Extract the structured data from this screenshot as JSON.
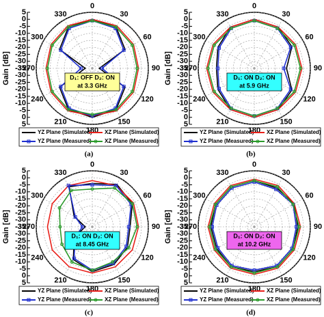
{
  "chart_data": [
    {
      "type": "polar",
      "caption": "(a)",
      "ylabel": "Gain [dB]",
      "rlim": [
        -35,
        5
      ],
      "rticks": [
        5,
        0,
        -5,
        -10,
        -15,
        -20,
        -25,
        -30,
        -35
      ],
      "thetaticks": [
        0,
        30,
        60,
        90,
        120,
        150,
        180,
        210,
        240,
        270,
        300,
        330
      ],
      "annotation": [
        "D₁: OFF D₂: ON",
        "at 3.3 GHz"
      ],
      "annotation_color": "#ffff99",
      "series": [
        {
          "name": "YZ Plane (Simulated)",
          "color": "#000000",
          "marker": "none",
          "values": [
            0,
            -1,
            -8,
            -30,
            -8,
            -1,
            0,
            -1,
            -8,
            -30,
            -8,
            -1
          ]
        },
        {
          "name": "XZ Plane (Simulated)",
          "color": "#e8201a",
          "marker": "none",
          "values": [
            0,
            0,
            -1,
            -2,
            -1,
            0,
            -1,
            0,
            -1,
            -2,
            -1,
            0
          ]
        },
        {
          "name": "YZ Plane (Measured)",
          "color": "#1f2fcf",
          "marker": "square",
          "values": [
            -1,
            -2,
            -9,
            -28,
            -9,
            -2,
            -1,
            -2,
            -9,
            -27,
            -9,
            -2
          ]
        },
        {
          "name": "XZ Plane (Measured)",
          "color": "#2a9a2a",
          "marker": "circle",
          "values": [
            -1,
            -1,
            -2,
            -3,
            -2,
            -1,
            -2,
            -1,
            -2,
            -3,
            -2,
            -1
          ]
        }
      ]
    },
    {
      "type": "polar",
      "caption": "(b)",
      "ylabel": "Gain [dB]",
      "rlim": [
        -35,
        5
      ],
      "rticks": [
        5,
        0,
        -5,
        -10,
        -15,
        -20,
        -25,
        -30,
        -35
      ],
      "thetaticks": [
        0,
        30,
        60,
        90,
        120,
        150,
        180,
        210,
        240,
        270,
        300,
        330
      ],
      "annotation": [
        "D₁: ON D₂: ON",
        "at 5.9 GHz"
      ],
      "annotation_color": "#33ffff",
      "series": [
        {
          "name": "YZ Plane (Simulated)",
          "color": "#000000",
          "marker": "none",
          "values": [
            0,
            -1,
            -4,
            -12,
            -4,
            -1,
            0,
            -1,
            -5,
            -8,
            -5,
            -1
          ]
        },
        {
          "name": "XZ Plane (Simulated)",
          "color": "#e8201a",
          "marker": "none",
          "values": [
            0,
            -1,
            -1,
            -1,
            -1,
            -1,
            0,
            -1,
            -1,
            -1,
            -1,
            -1
          ]
        },
        {
          "name": "YZ Plane (Measured)",
          "color": "#1f2fcf",
          "marker": "square",
          "values": [
            -1,
            -2,
            -5,
            -14,
            -5,
            -2,
            -1,
            -2,
            -6,
            -9,
            -6,
            -2
          ]
        },
        {
          "name": "XZ Plane (Measured)",
          "color": "#2a9a2a",
          "marker": "circle",
          "values": [
            -1,
            -2,
            -2,
            -2,
            -2,
            -2,
            -1,
            -2,
            -2,
            -2,
            -2,
            -2
          ]
        }
      ]
    },
    {
      "type": "polar",
      "caption": "(c)",
      "ylabel": "Gain [dB]",
      "rlim": [
        -35,
        5
      ],
      "rticks": [
        5,
        0,
        -5,
        -10,
        -15,
        -20,
        -25,
        -30,
        -35
      ],
      "thetaticks": [
        0,
        30,
        60,
        90,
        120,
        150,
        180,
        210,
        240,
        270,
        300,
        330
      ],
      "annotation": [
        "D₁: ON D₂: ON",
        "at 8.45 GHz"
      ],
      "annotation_color": "#33ffff",
      "series": [
        {
          "name": "YZ Plane (Simulated)",
          "color": "#000000",
          "marker": "none",
          "values": [
            -4,
            0,
            -2,
            -8,
            -6,
            -4,
            -3,
            -8,
            -20,
            -30,
            -20,
            -2
          ]
        },
        {
          "name": "XZ Plane (Simulated)",
          "color": "#e8201a",
          "marker": "none",
          "values": [
            -2,
            -1,
            -1,
            -2,
            -2,
            -2,
            -2,
            -2,
            -2,
            -3,
            -2,
            -1
          ]
        },
        {
          "name": "YZ Plane (Measured)",
          "color": "#1f2fcf",
          "marker": "square",
          "values": [
            -5,
            -1,
            -3,
            -9,
            -7,
            -5,
            -4,
            -9,
            -21,
            -28,
            -21,
            -1
          ]
        },
        {
          "name": "XZ Plane (Measured)",
          "color": "#2a9a2a",
          "marker": "circle",
          "values": [
            -8,
            -3,
            -2,
            -3,
            -5,
            -6,
            -4,
            -6,
            -10,
            -12,
            -8,
            -5
          ]
        }
      ]
    },
    {
      "type": "polar",
      "caption": "(d)",
      "ylabel": "Gain [dB]",
      "rlim": [
        -35,
        5
      ],
      "rticks": [
        5,
        0,
        -5,
        -10,
        -15,
        -20,
        -25,
        -30,
        -35
      ],
      "thetaticks": [
        0,
        30,
        60,
        90,
        120,
        150,
        180,
        210,
        240,
        270,
        300,
        330
      ],
      "annotation": [
        "D₁: ON D₂: ON",
        "at 10.2 GHz"
      ],
      "annotation_color": "#ee66ee",
      "series": [
        {
          "name": "YZ Plane (Simulated)",
          "color": "#000000",
          "marker": "none",
          "values": [
            -2,
            -3,
            -2,
            -4,
            -3,
            -2,
            -3,
            -2,
            -4,
            -4,
            -3,
            -2
          ]
        },
        {
          "name": "XZ Plane (Simulated)",
          "color": "#e8201a",
          "marker": "none",
          "values": [
            -1,
            -1,
            -2,
            -2,
            -2,
            -1,
            -1,
            -1,
            -2,
            -2,
            -2,
            -1
          ]
        },
        {
          "name": "YZ Plane (Measured)",
          "color": "#1f2fcf",
          "marker": "square",
          "values": [
            -3,
            -4,
            -3,
            -5,
            -4,
            -3,
            -4,
            -3,
            -5,
            -5,
            -4,
            -3
          ]
        },
        {
          "name": "XZ Plane (Measured)",
          "color": "#2a9a2a",
          "marker": "circle",
          "values": [
            -2,
            -2,
            -3,
            -3,
            -3,
            -2,
            -2,
            -2,
            -3,
            -3,
            -3,
            -2
          ]
        }
      ]
    }
  ]
}
